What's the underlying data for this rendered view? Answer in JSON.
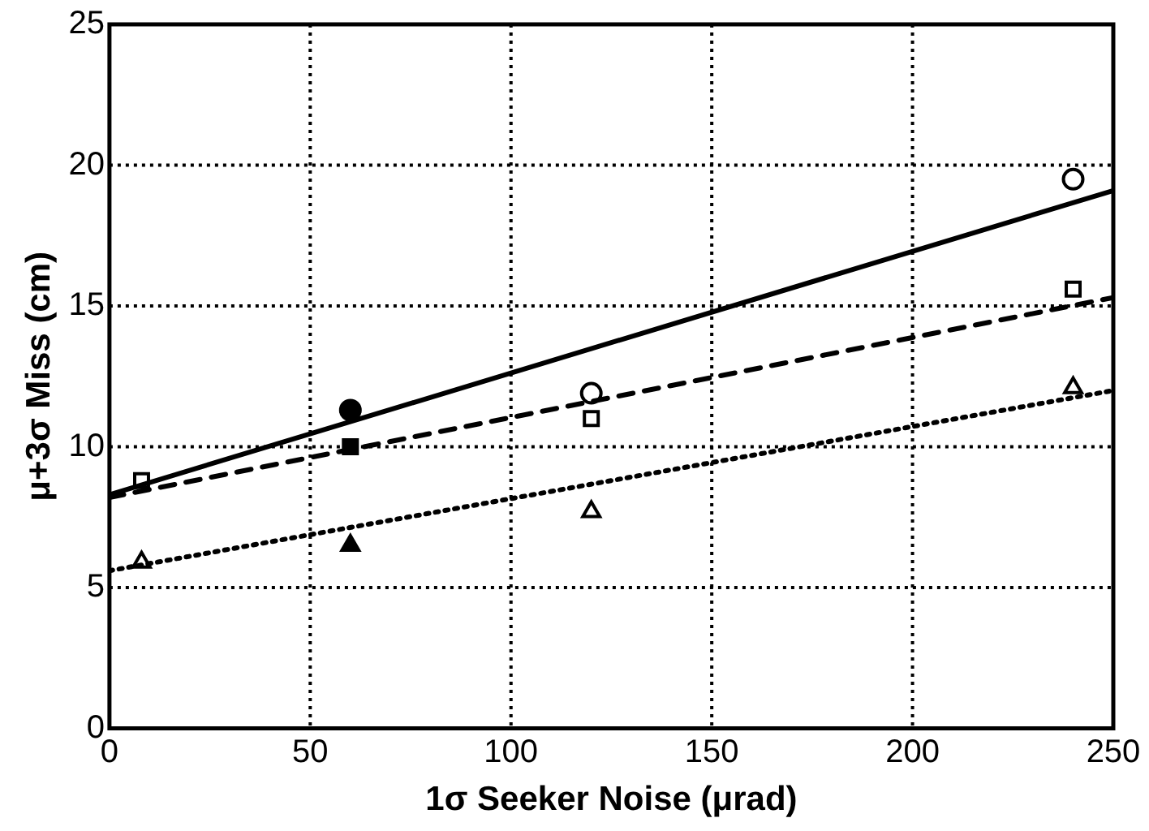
{
  "chart_data": {
    "type": "scatter",
    "xlabel": "1σ Seeker Noise (μrad)",
    "ylabel": "μ+3σ Miss (cm)",
    "xlim": [
      0,
      250
    ],
    "xticks": [
      0,
      50,
      100,
      150,
      200,
      250
    ],
    "ylim": [
      0,
      25
    ],
    "yticks": [
      0,
      5,
      10,
      15,
      20,
      25
    ],
    "grid": true,
    "legend": false,
    "series": [
      {
        "type": "line",
        "x": [
          0,
          250
        ],
        "values": [
          8.3,
          19.1
        ],
        "color": "#000000",
        "line_style": "solid",
        "marker": "none"
      },
      {
        "type": "line",
        "x": [
          0,
          250
        ],
        "values": [
          8.2,
          15.3
        ],
        "color": "#000000",
        "line_style": "dashed",
        "marker": "none"
      },
      {
        "type": "line",
        "x": [
          0,
          250
        ],
        "values": [
          5.6,
          12
        ],
        "color": "#000000",
        "line_style": "dotted",
        "marker": "none"
      },
      {
        "type": "scatter",
        "x": [
          120,
          240
        ],
        "values": [
          11.9,
          19.5
        ],
        "color": "#ffffff",
        "marker": "circle"
      },
      {
        "type": "scatter",
        "x": [
          8,
          120,
          240
        ],
        "values": [
          8.8,
          11,
          15.6
        ],
        "color": "#ffffff",
        "marker": "square"
      },
      {
        "type": "scatter",
        "x": [
          8,
          120,
          240
        ],
        "values": [
          5.9,
          7.7,
          12.1
        ],
        "color": "#ffffff",
        "marker": "triangle"
      },
      {
        "type": "scatter",
        "x": [
          60
        ],
        "values": [
          11.3
        ],
        "color": "#000000",
        "marker": "circle"
      },
      {
        "type": "scatter",
        "x": [
          60
        ],
        "values": [
          10
        ],
        "color": "#000000",
        "marker": "square"
      },
      {
        "type": "scatter",
        "x": [
          60
        ],
        "values": [
          6.5
        ],
        "color": "#000000",
        "marker": "triangle"
      }
    ]
  }
}
